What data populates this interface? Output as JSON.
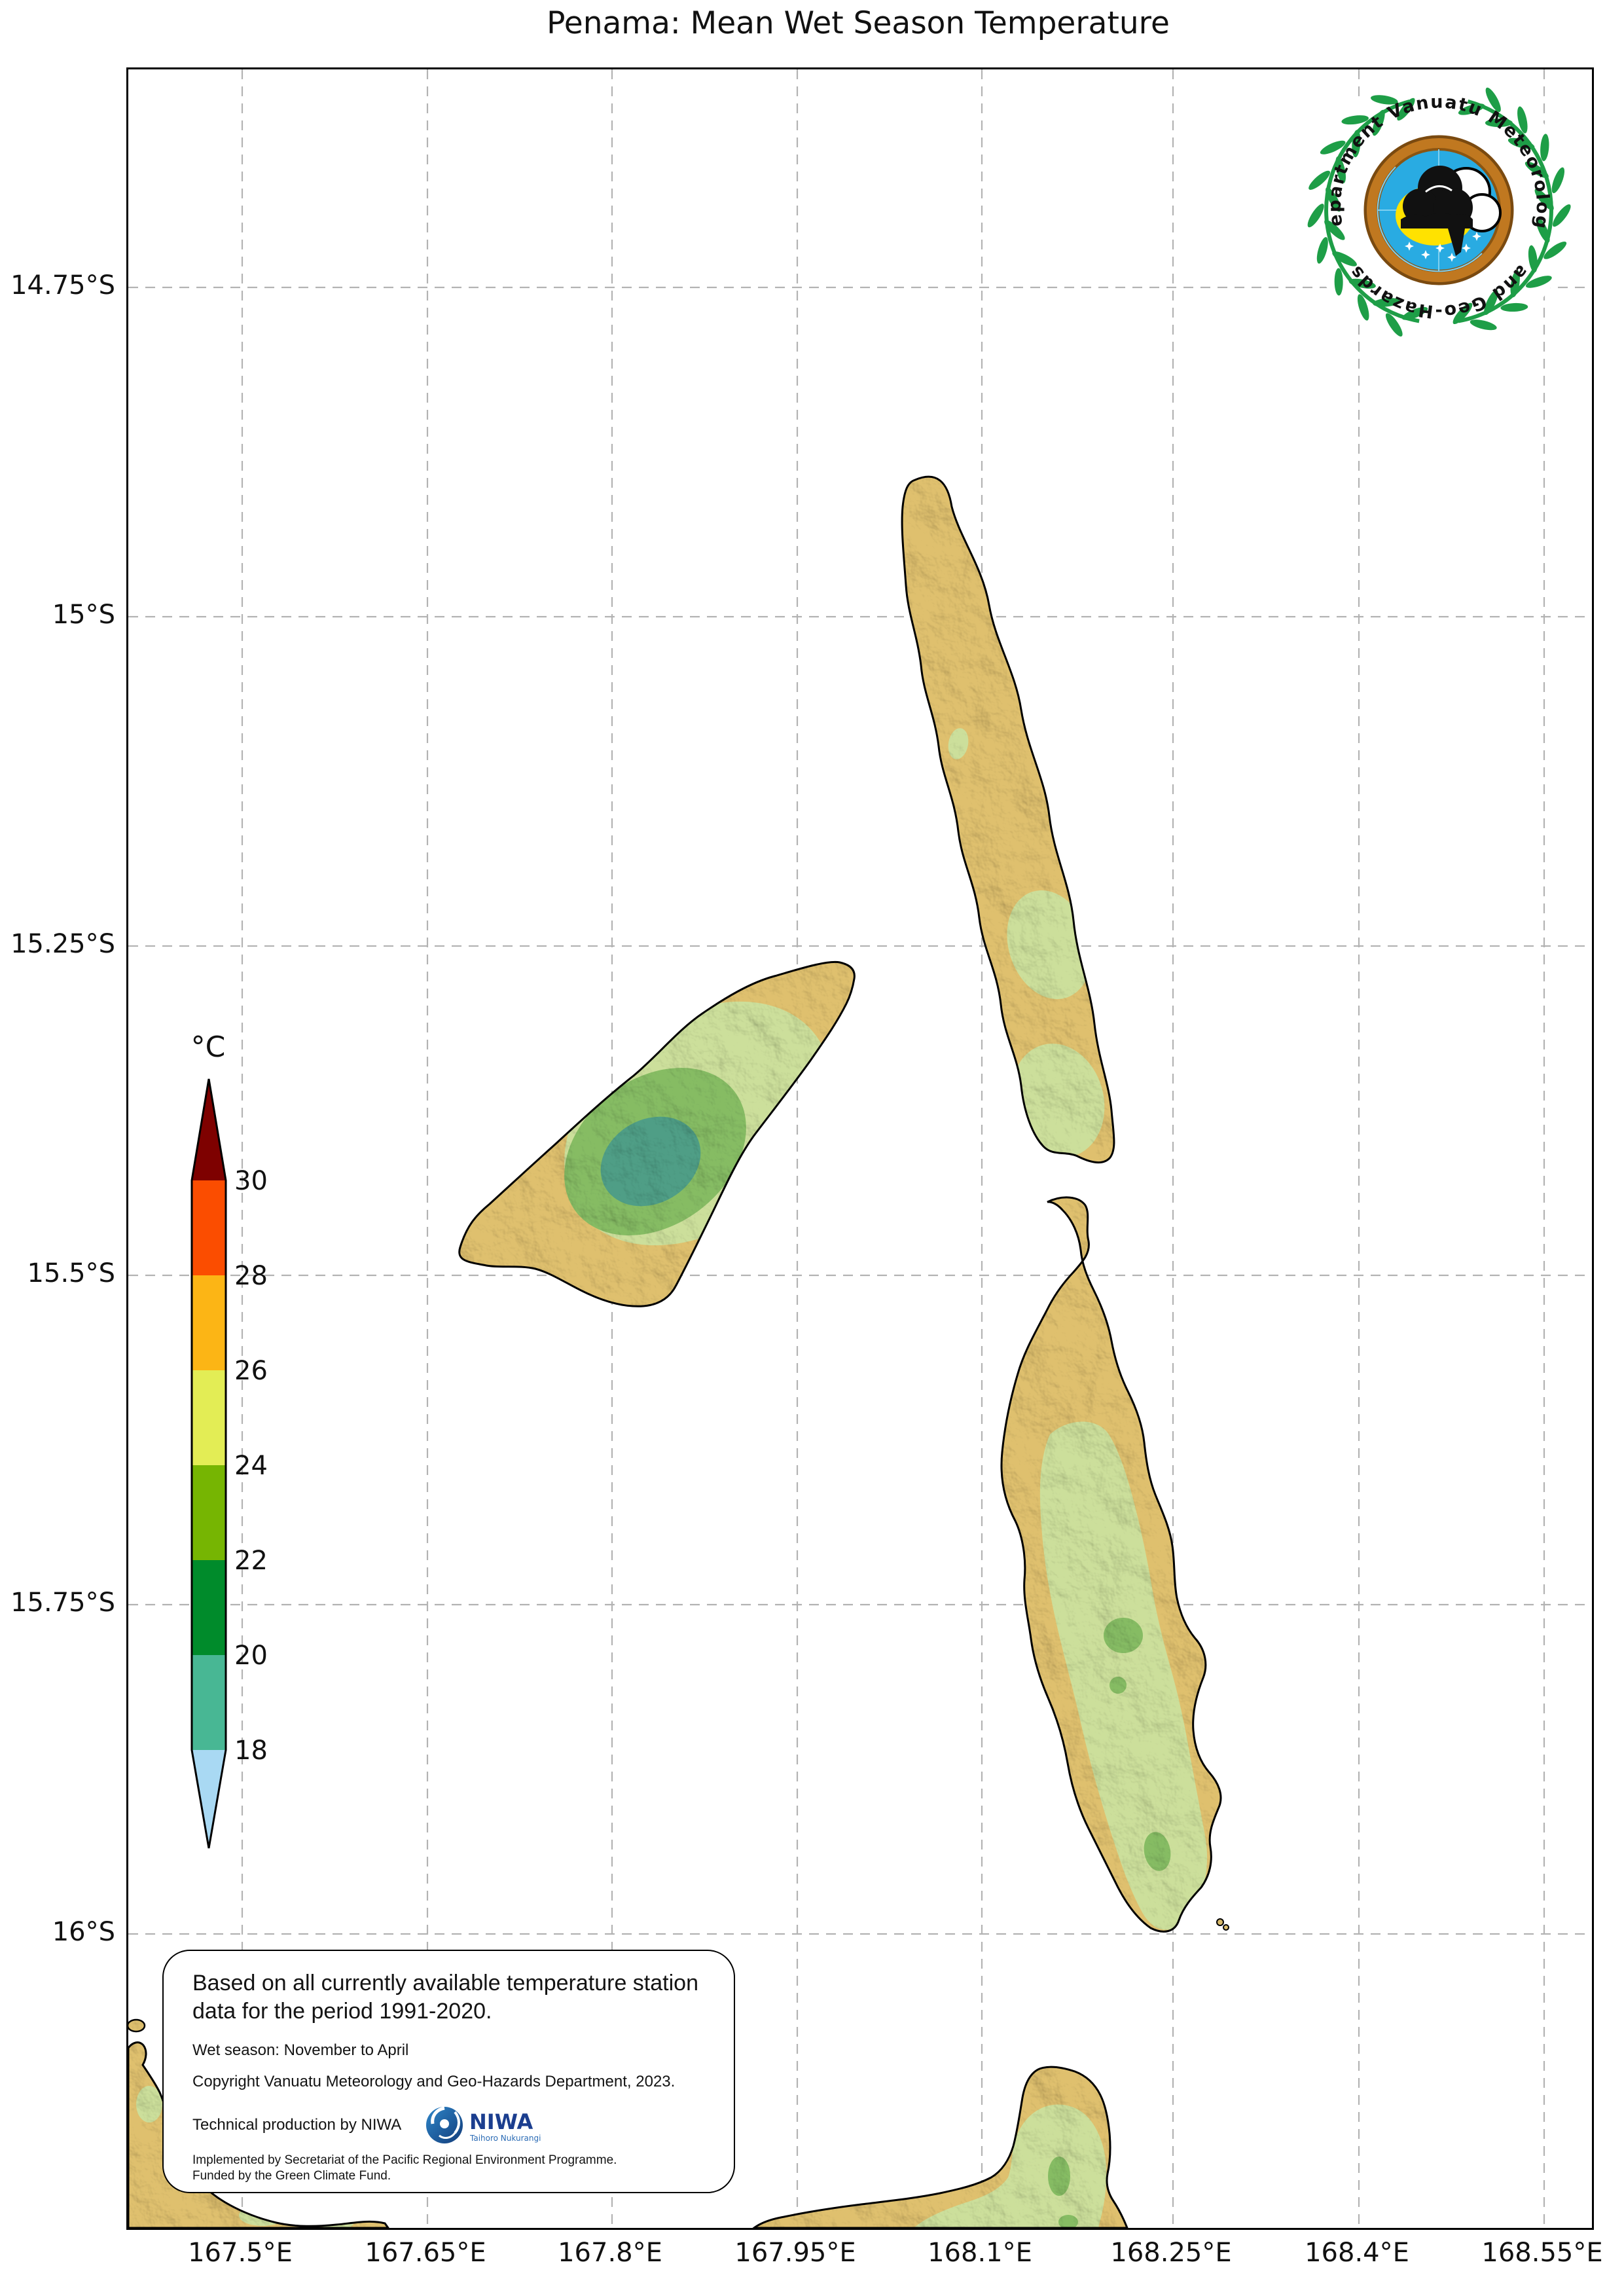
{
  "title": "Penama: Mean Wet Season Temperature",
  "axes": {
    "lat_labels": [
      "14.75°S",
      "15°S",
      "15.25°S",
      "15.5°S",
      "15.75°S",
      "16°S"
    ],
    "lon_labels": [
      "167.5°E",
      "167.65°E",
      "167.8°E",
      "167.95°E",
      "168.1°E",
      "168.25°E",
      "168.4°E",
      "168.55°E"
    ]
  },
  "colorbar": {
    "title": "°C",
    "tick_labels": [
      "30",
      "28",
      "26",
      "24",
      "22",
      "20",
      "18"
    ],
    "segment_colors_top_to_bottom": [
      "#7E0100",
      "#FB4D00",
      "#FCB515",
      "#E3ED55",
      "#76B502",
      "#008B2B",
      "#48B794",
      "#A9D9F3"
    ]
  },
  "map": {
    "land_color": "#DFC06E",
    "zone_24_26_color": "#CCDF9B",
    "zone_22_24_color": "#86BC64",
    "zone_20_22_color": "#4F9E86",
    "gridline_color": "#B3B3B3"
  },
  "logo": {
    "arc_text_top": "Department Vanuatu Meteorology",
    "arc_text_bottom": "and Geo-Hazards"
  },
  "info_box": {
    "statement": "Based on all currently available temperature station data for the period 1991-2020.",
    "wet_season": "Wet season: November to April",
    "copyright": "Copyright Vanuatu Meteorology and Geo-Hazards Department, 2023.",
    "production": "Technical production by NIWA",
    "implemented": "Implemented by Secretariat of the Pacific Regional Environment Programme.",
    "funded": "Funded by the Green Climate Fund.",
    "niwa_name": "NIWA",
    "niwa_tagline": "Taihoro Nukurangi"
  }
}
